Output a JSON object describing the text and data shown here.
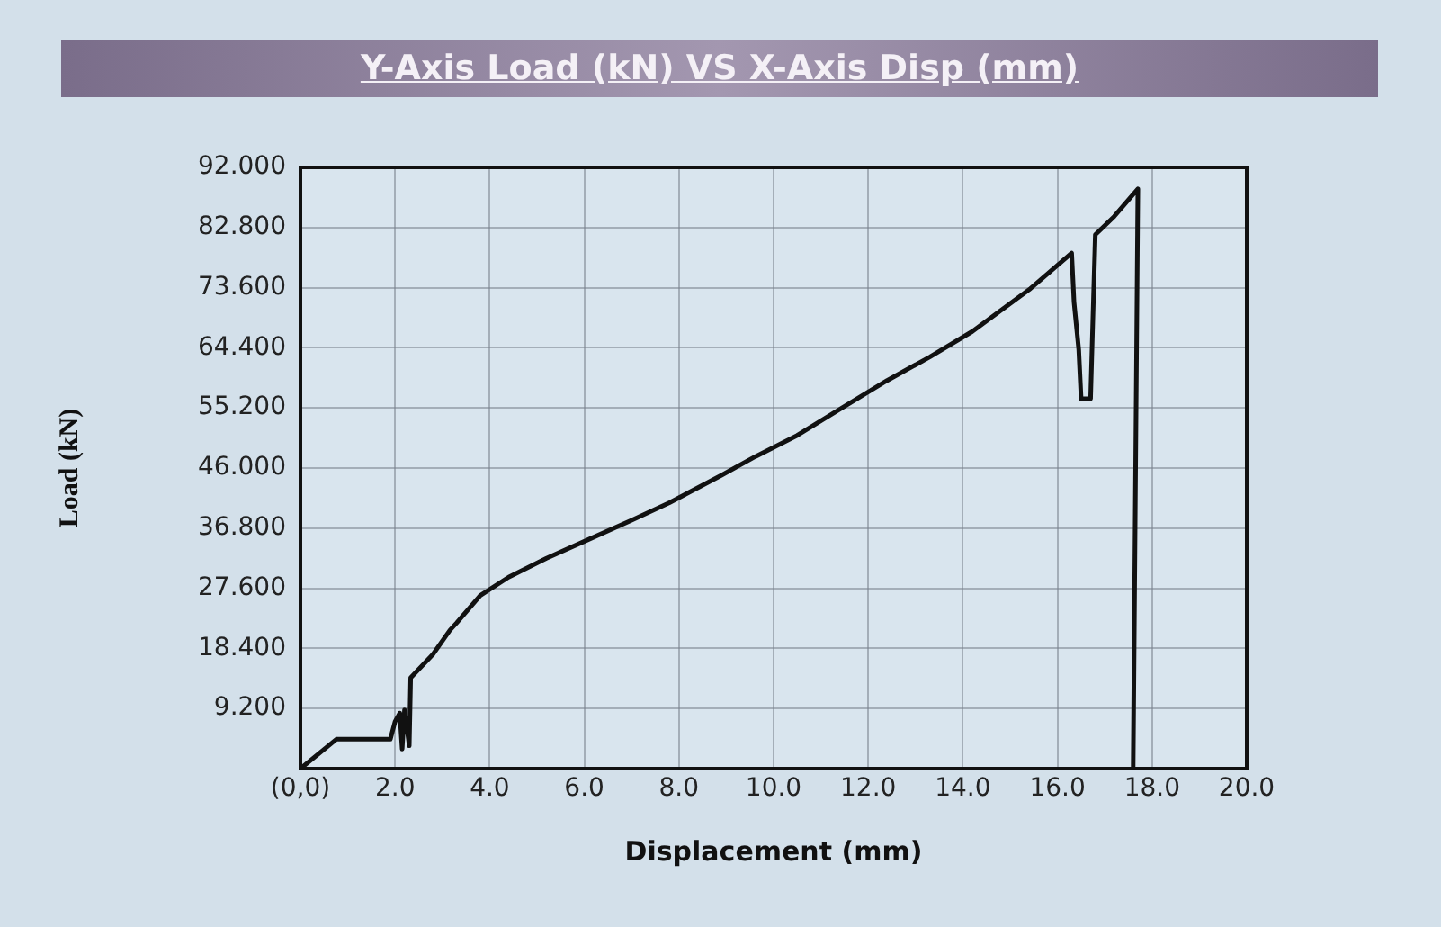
{
  "chart_data": {
    "type": "line",
    "title": "Y-Axis Load (kN) VS X-Axis Disp (mm)",
    "xlabel": "Displacement (mm)",
    "ylabel": "Load (kN)",
    "x": [
      0,
      0.76,
      1.9,
      2.0,
      2.1,
      2.15,
      2.2,
      2.3,
      2.33,
      2.8,
      3.16,
      3.3,
      3.8,
      4.4,
      5.2,
      6.1,
      7.0,
      7.8,
      8.9,
      9.6,
      10.5,
      11.4,
      12.4,
      13.3,
      14.2,
      15.4,
      16.3,
      16.35,
      16.45,
      16.5,
      16.7,
      16.8,
      17.2,
      17.7,
      17.6
    ],
    "values": [
      0,
      4.5,
      4.5,
      7.2,
      8.5,
      3,
      9,
      3.5,
      13.9,
      17.5,
      21.2,
      22.3,
      26.5,
      29.3,
      32.2,
      35.1,
      38,
      40.7,
      44.9,
      47.7,
      51,
      55,
      59.4,
      63,
      66.9,
      73.3,
      78.9,
      71.4,
      64.1,
      56.6,
      56.6,
      81.7,
      84.5,
      88.7,
      0
    ],
    "color": "#111111",
    "xlim": [
      0,
      20
    ],
    "ylim": [
      0,
      92
    ],
    "xticks": [
      {
        "value": 0,
        "label": "(0,0)"
      },
      {
        "value": 2,
        "label": "2.0"
      },
      {
        "value": 4,
        "label": "4.0"
      },
      {
        "value": 6,
        "label": "6.0"
      },
      {
        "value": 8,
        "label": "8.0"
      },
      {
        "value": 10,
        "label": "10.0"
      },
      {
        "value": 12,
        "label": "12.0"
      },
      {
        "value": 14,
        "label": "14.0"
      },
      {
        "value": 16,
        "label": "16.0"
      },
      {
        "value": 18,
        "label": "18.0"
      },
      {
        "value": 20,
        "label": "20.0"
      }
    ],
    "yticks": [
      {
        "value": 0,
        "label": null
      },
      {
        "value": 9.2,
        "label": "9.200"
      },
      {
        "value": 18.4,
        "label": "18.400"
      },
      {
        "value": 27.6,
        "label": "27.600"
      },
      {
        "value": 36.8,
        "label": "36.800"
      },
      {
        "value": 46,
        "label": "46.000"
      },
      {
        "value": 55.2,
        "label": "55.200"
      },
      {
        "value": 64.4,
        "label": "64.400"
      },
      {
        "value": 73.6,
        "label": "73.600"
      },
      {
        "value": 82.8,
        "label": "82.800"
      },
      {
        "value": 92,
        "label": "92.000"
      }
    ],
    "grid": true
  }
}
